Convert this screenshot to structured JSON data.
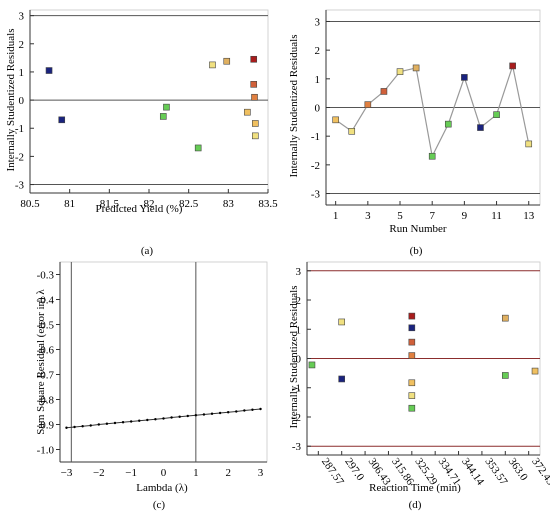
{
  "chart_data": [
    {
      "type": "scatter",
      "panel_label": "(a)",
      "xlabel": "Predicted Yield (%)",
      "ylabel": "Internally Studentized Residuals",
      "xlim": [
        80.5,
        83.5
      ],
      "ylim": [
        -3.3,
        3.2
      ],
      "xticks": [
        "80.5",
        "81",
        "81.5",
        "82",
        "82.5",
        "83",
        "83.5"
      ],
      "yticks": [
        "-3",
        "-2",
        "-1",
        "0",
        "1",
        "2",
        "3"
      ],
      "reference_lines": [
        {
          "y": 3,
          "color": "#555555"
        },
        {
          "y": -3,
          "color": "#555555"
        },
        {
          "y": 0,
          "color": "#555555"
        }
      ],
      "points": [
        {
          "x": 80.74,
          "y": 1.05,
          "color": "#1a237e"
        },
        {
          "x": 80.9,
          "y": -0.7,
          "color": "#1a237e"
        },
        {
          "x": 82.18,
          "y": -0.58,
          "color": "#66cc55"
        },
        {
          "x": 82.22,
          "y": -0.25,
          "color": "#66cc55"
        },
        {
          "x": 82.62,
          "y": -1.7,
          "color": "#66cc55"
        },
        {
          "x": 82.8,
          "y": 1.25,
          "color": "#f0e080"
        },
        {
          "x": 82.98,
          "y": 1.38,
          "color": "#e0b060"
        },
        {
          "x": 83.24,
          "y": -0.43,
          "color": "#f0c060"
        },
        {
          "x": 83.32,
          "y": 1.45,
          "color": "#a81c1c"
        },
        {
          "x": 83.32,
          "y": 0.56,
          "color": "#d0603a"
        },
        {
          "x": 83.33,
          "y": 0.1,
          "color": "#e08040"
        },
        {
          "x": 83.34,
          "y": -0.83,
          "color": "#f0c060"
        },
        {
          "x": 83.34,
          "y": -1.27,
          "color": "#f0e080"
        }
      ]
    },
    {
      "type": "line",
      "panel_label": "(b)",
      "xlabel": "Run Number",
      "ylabel": "Internally Studentized Residuals",
      "xlim": [
        0.4,
        13.7
      ],
      "ylim": [
        -3.4,
        3.4
      ],
      "xticks": [
        "1",
        "3",
        "5",
        "7",
        "9",
        "11",
        "13"
      ],
      "yticks": [
        "-3",
        "-2",
        "-1",
        "0",
        "1",
        "2",
        "3"
      ],
      "reference_lines": [
        {
          "y": 3,
          "color": "#555555"
        },
        {
          "y": -3,
          "color": "#555555"
        },
        {
          "y": 0,
          "color": "#555555"
        }
      ],
      "x": [
        1,
        2,
        3,
        4,
        5,
        6,
        7,
        8,
        9,
        10,
        11,
        12,
        13
      ],
      "y": [
        -0.43,
        -0.83,
        0.1,
        0.56,
        1.25,
        1.38,
        -1.7,
        -0.58,
        1.05,
        -0.7,
        -0.25,
        1.45,
        -1.27
      ],
      "colors": [
        "#f0c060",
        "#f0e080",
        "#e08040",
        "#d0603a",
        "#f0e080",
        "#e0b060",
        "#66cc55",
        "#66cc55",
        "#1a237e",
        "#1a237e",
        "#66cc55",
        "#a81c1c",
        "#f0e080"
      ]
    },
    {
      "type": "line",
      "panel_label": "(c)",
      "xlabel": "Lambda (λ)",
      "ylabel": "Sum Square Residual (error in) λ",
      "xlim": [
        -3.2,
        3.2
      ],
      "ylim": [
        -1.05,
        -0.25
      ],
      "xticks": [
        "−3",
        "−2",
        "−1",
        "0",
        "1",
        "2",
        "3"
      ],
      "yticks": [
        "-0.3",
        "-0.4",
        "-0.5",
        "-0.6",
        "-0.7",
        "-0.8",
        "-0.9",
        "-1.0"
      ],
      "vertical_lines": [
        -2.85,
        1
      ],
      "x": [
        -3,
        -2.75,
        -2.5,
        -2.25,
        -2,
        -1.75,
        -1.5,
        -1.25,
        -1,
        -0.75,
        -0.5,
        -0.25,
        0,
        0.25,
        0.5,
        0.75,
        1,
        1.25,
        1.5,
        1.75,
        2,
        2.25,
        2.5,
        2.75,
        3
      ],
      "y": [
        -0.913,
        -0.91,
        -0.907,
        -0.904,
        -0.9,
        -0.897,
        -0.894,
        -0.891,
        -0.888,
        -0.885,
        -0.882,
        -0.879,
        -0.876,
        -0.872,
        -0.869,
        -0.866,
        -0.863,
        -0.86,
        -0.857,
        -0.854,
        -0.851,
        -0.848,
        -0.844,
        -0.841,
        -0.838
      ]
    },
    {
      "type": "scatter",
      "panel_label": "(d)",
      "xlabel": "Reaction Time (min)",
      "ylabel": "Internally Studentized Residuals",
      "xlim": [
        283,
        377
      ],
      "ylim": [
        -3.3,
        3.3
      ],
      "xticks": [
        "287.57",
        "297.0",
        "306.43",
        "315.86",
        "325.29",
        "334.71",
        "344.14",
        "353.57",
        "363.0",
        "372.43"
      ],
      "tick_values": [
        287.57,
        297.0,
        306.43,
        315.86,
        325.29,
        334.71,
        344.14,
        353.57,
        363.0,
        372.43
      ],
      "yticks": [
        "-3",
        "-2",
        "-1",
        "0",
        "1",
        "2",
        "3"
      ],
      "reference_lines": [
        {
          "y": 3,
          "color": "#8b2d2d"
        },
        {
          "y": -3,
          "color": "#8b2d2d"
        },
        {
          "y": 0,
          "color": "#8b2d2d"
        }
      ],
      "points": [
        {
          "x": 285,
          "y": -0.22,
          "color": "#66cc55"
        },
        {
          "x": 297,
          "y": 1.25,
          "color": "#f0e080"
        },
        {
          "x": 297,
          "y": -0.7,
          "color": "#1a237e"
        },
        {
          "x": 325.29,
          "y": 1.45,
          "color": "#a81c1c"
        },
        {
          "x": 325.29,
          "y": 1.05,
          "color": "#1a237e"
        },
        {
          "x": 325.29,
          "y": 0.56,
          "color": "#d0603a"
        },
        {
          "x": 325.29,
          "y": 0.1,
          "color": "#e08040"
        },
        {
          "x": 325.29,
          "y": -0.83,
          "color": "#f0c060"
        },
        {
          "x": 325.29,
          "y": -1.27,
          "color": "#f0e080"
        },
        {
          "x": 325.29,
          "y": -1.7,
          "color": "#66cc55"
        },
        {
          "x": 363.0,
          "y": 1.38,
          "color": "#e0b060"
        },
        {
          "x": 363.0,
          "y": -0.58,
          "color": "#66cc55"
        },
        {
          "x": 375,
          "y": -0.43,
          "color": "#f0c060"
        }
      ]
    }
  ]
}
